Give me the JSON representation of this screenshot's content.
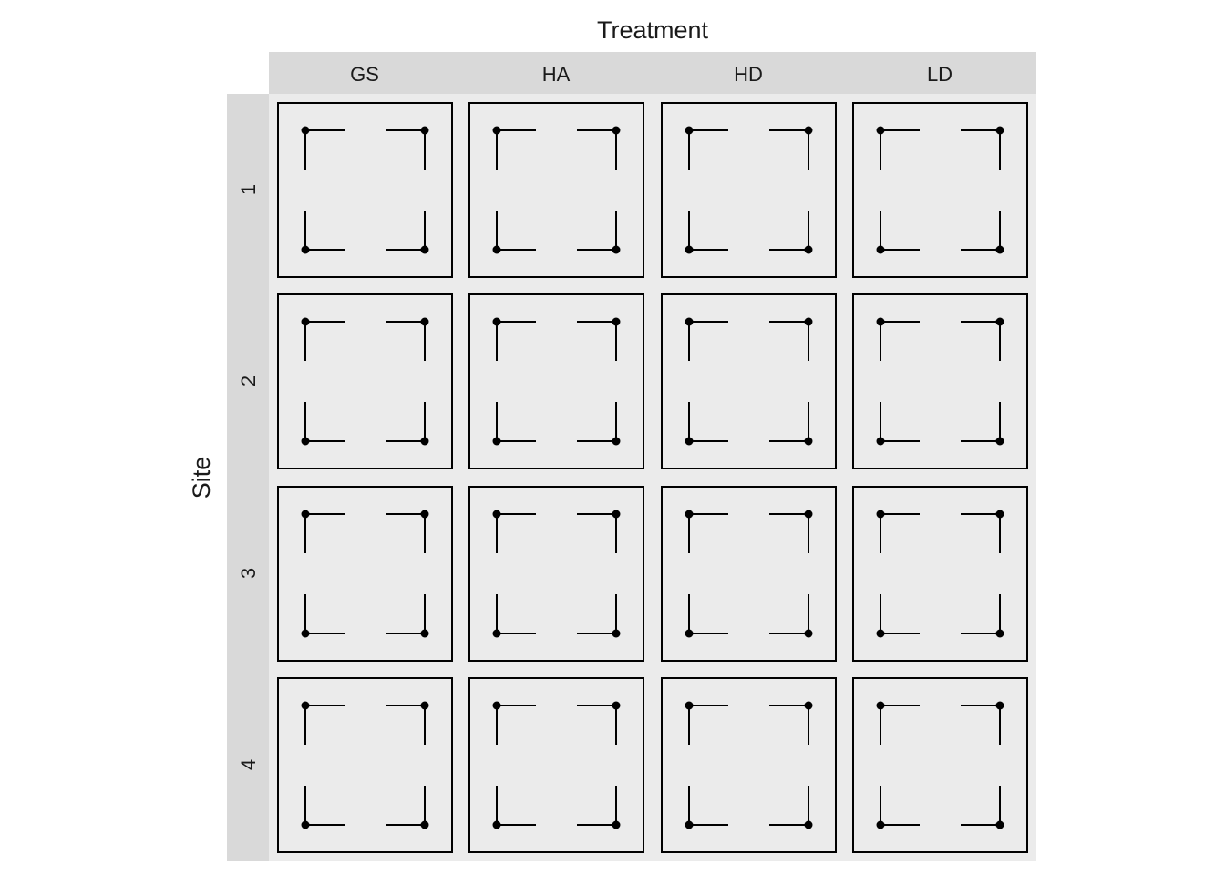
{
  "column_facet_title": "Treatment",
  "row_facet_title": "Site",
  "columns": [
    "GS",
    "HA",
    "HD",
    "LD"
  ],
  "rows": [
    "1",
    "2",
    "3",
    "4"
  ],
  "colors": {
    "strip_bg": "#d9d9d9",
    "panel_bg": "#ebebeb",
    "line": "#000000",
    "text": "#1a1a1a"
  }
}
